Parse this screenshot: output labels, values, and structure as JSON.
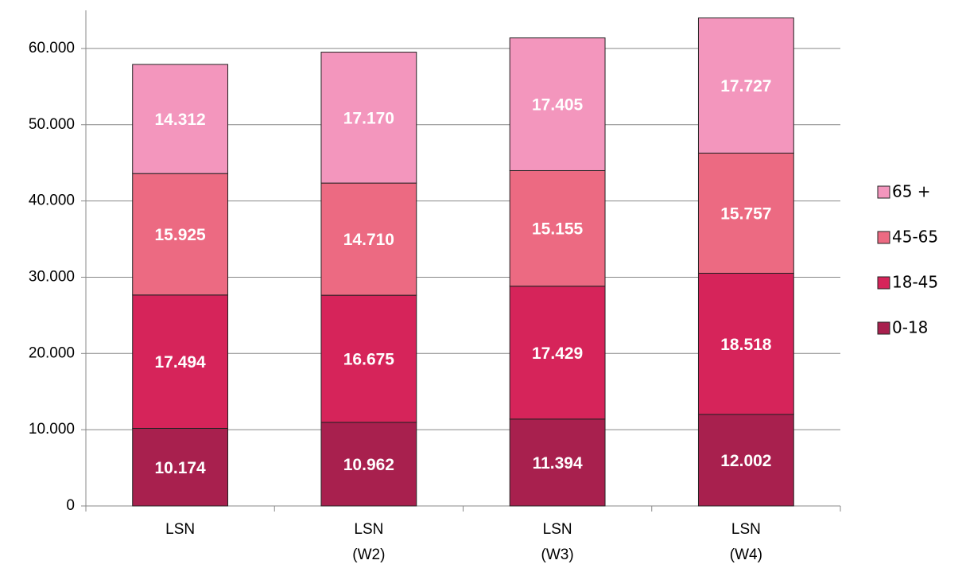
{
  "chart_data": {
    "type": "stacked_bar",
    "categories": [
      "LSN",
      "LSN (W2)",
      "LSN (W3)",
      "LSN (W4)"
    ],
    "series": [
      {
        "name": "0-18",
        "color": "#a8204e",
        "values": [
          10174,
          10962,
          11394,
          12002
        ],
        "value_labels": [
          "10.174",
          "10.962",
          "11.394",
          "12.002"
        ]
      },
      {
        "name": "18-45",
        "color": "#d6245a",
        "values": [
          17494,
          16675,
          17429,
          18518
        ],
        "value_labels": [
          "17.494",
          "16.675",
          "17.429",
          "18.518"
        ]
      },
      {
        "name": "45-65",
        "color": "#ec6a82",
        "values": [
          15925,
          14710,
          15155,
          15757
        ],
        "value_labels": [
          "15.925",
          "14.710",
          "15.155",
          "15.757"
        ]
      },
      {
        "name": "65 +",
        "color": "#f396bd",
        "values": [
          14312,
          17170,
          17405,
          17727
        ],
        "value_labels": [
          "14.312",
          "17.170",
          "17.405",
          "17.727"
        ]
      }
    ],
    "ylim": [
      0,
      65000
    ],
    "yticks": [
      0,
      {
        "value": 10000,
        "label": "10.000"
      },
      {
        "value": 20000,
        "label": "20.000"
      },
      {
        "value": 30000,
        "label": "30.000"
      },
      {
        "value": 40000,
        "label": "40.000"
      },
      {
        "value": 50000,
        "label": "50.000"
      },
      {
        "value": 60000,
        "label": "60.000"
      }
    ],
    "grid": true,
    "legend": "right"
  }
}
